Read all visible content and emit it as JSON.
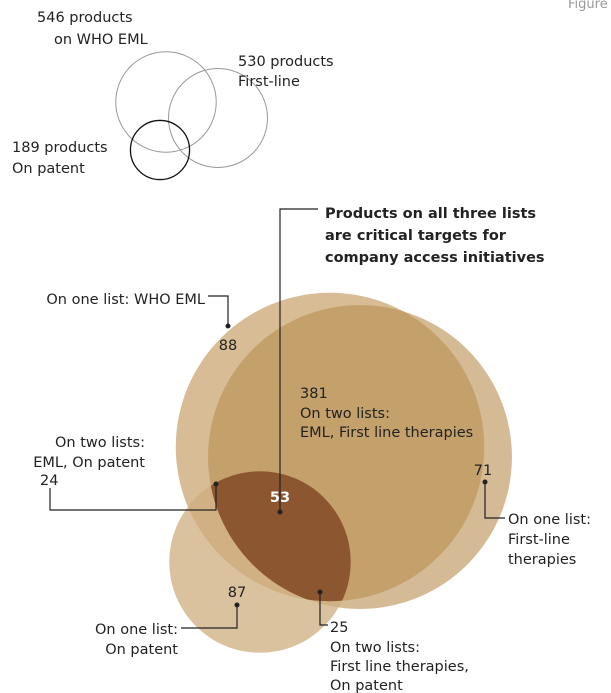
{
  "chart_data": {
    "type": "venn",
    "figure_label": "Figure",
    "sets": [
      {
        "name": "on WHO EML",
        "value": 546,
        "value_label": "546 products",
        "color": "#c9a572"
      },
      {
        "name": "First-line",
        "value": 530,
        "value_label": "530 products",
        "color": "#b88d4e"
      },
      {
        "name": "On patent",
        "value": 189,
        "value_label": "189 products",
        "color": "#cfae7f"
      }
    ],
    "intersection_color": "#8c5631",
    "regions": [
      {
        "value": 88,
        "label_lines": [
          "On one list: WHO EML"
        ]
      },
      {
        "value": 381,
        "label_lines": [
          "On two lists:",
          "EML, First line therapies"
        ]
      },
      {
        "value": 71,
        "label_lines": [
          "On one list:",
          "First-line",
          "therapies"
        ]
      },
      {
        "value": 24,
        "label_lines": [
          "On two lists:",
          "EML, On patent"
        ]
      },
      {
        "value": 53,
        "label_lines": []
      },
      {
        "value": 87,
        "label_lines": [
          "On one list:",
          "On patent"
        ]
      },
      {
        "value": 25,
        "label_lines": [
          "On two lists:",
          "First line therapies,",
          "On patent"
        ]
      }
    ],
    "annotation": [
      "Products on all three lists",
      "are critical targets for",
      "company access initiatives"
    ]
  }
}
